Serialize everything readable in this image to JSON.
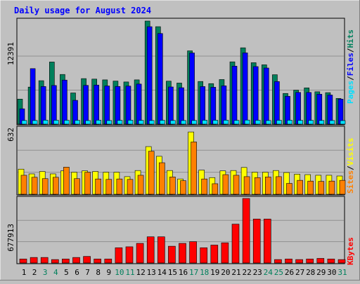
{
  "chart_data": [
    {
      "panel": "pages_files_hits",
      "type": "bar",
      "title": "Daily usage for August 2024",
      "ylabel_parts": [
        "Pages",
        "/",
        "Files",
        "/",
        "Hits"
      ],
      "max_label": "12391",
      "ylim": [
        0,
        12391
      ],
      "categories": [
        "1",
        "2",
        "3",
        "4",
        "5",
        "6",
        "7",
        "8",
        "9",
        "10",
        "11",
        "12",
        "13",
        "14",
        "15",
        "16",
        "17",
        "18",
        "19",
        "20",
        "21",
        "22",
        "23",
        "24",
        "25",
        "26",
        "27",
        "28",
        "29",
        "30",
        "31"
      ],
      "series": [
        {
          "name": "Hits",
          "values": [
            3006,
            4453,
            5220,
            7465,
            5970,
            3748,
            5470,
            5411,
            5319,
            5174,
            5068,
            5320,
            12391,
            11713,
            5165,
            4936,
            8809,
            5126,
            4868,
            5359,
            7487,
            9175,
            7384,
            7130,
            5939,
            3689,
            4085,
            4359,
            3891,
            3782,
            3089
          ]
        },
        {
          "name": "Files",
          "values": [
            1841,
            6675,
            4523,
            4643,
            5293,
            2861,
            4657,
            4697,
            4586,
            4531,
            4572,
            4817,
            11713,
            10893,
            4468,
            4376,
            8556,
            4517,
            4434,
            4601,
            6971,
            8562,
            6916,
            6744,
            5120,
            3350,
            3811,
            3804,
            3596,
            3497,
            3006
          ]
        },
        {
          "name": "Pages",
          "values": [
            436,
            436,
            473,
            467,
            464,
            458,
            429,
            473,
            431,
            451,
            470,
            453,
            436,
            459,
            438,
            432,
            438,
            468,
            466,
            472,
            453,
            487,
            463,
            436,
            461,
            467,
            452,
            452,
            440,
            433,
            424
          ]
        }
      ]
    },
    {
      "panel": "visits_sites",
      "type": "bar",
      "ylabel_parts": [
        "Sites",
        "/",
        "Visits"
      ],
      "max_label": "632",
      "ylim": [
        0,
        632
      ],
      "categories": [
        "1",
        "2",
        "3",
        "4",
        "5",
        "6",
        "7",
        "8",
        "9",
        "10",
        "11",
        "12",
        "13",
        "14",
        "15",
        "16",
        "17",
        "18",
        "19",
        "20",
        "21",
        "22",
        "23",
        "24",
        "25",
        "26",
        "27",
        "28",
        "29",
        "30",
        "31"
      ],
      "series": [
        {
          "name": "Visits",
          "values": [
            238,
            193,
            216,
            193,
            222,
            209,
            222,
            216,
            209,
            209,
            167,
            225,
            452,
            360,
            225,
            145,
            591,
            229,
            158,
            222,
            225,
            254,
            209,
            209,
            225,
            206,
            190,
            186,
            180,
            180,
            173
          ]
        },
        {
          "name": "Sites",
          "values": [
            180,
            161,
            148,
            161,
            257,
            148,
            209,
            145,
            141,
            145,
            141,
            180,
            408,
            299,
            164,
            129,
            496,
            145,
            100,
            186,
            180,
            167,
            158,
            164,
            167,
            103,
            132,
            125,
            122,
            125,
            132
          ]
        }
      ]
    },
    {
      "panel": "kbytes",
      "type": "bar",
      "ylabel_parts": [
        "KBytes"
      ],
      "max_label": "677913",
      "ylim": [
        0,
        677913
      ],
      "categories": [
        "1",
        "2",
        "3",
        "4",
        "5",
        "6",
        "7",
        "8",
        "9",
        "10",
        "11",
        "12",
        "13",
        "14",
        "15",
        "16",
        "17",
        "18",
        "19",
        "20",
        "21",
        "22",
        "23",
        "24",
        "25",
        "26",
        "27",
        "28",
        "29",
        "30",
        "31"
      ],
      "series": [
        {
          "name": "KBytes",
          "values": [
            42000,
            58000,
            58000,
            36000,
            42000,
            58000,
            69000,
            42000,
            42000,
            160000,
            170000,
            206000,
            275000,
            275000,
            176000,
            206000,
            224000,
            160000,
            188000,
            212000,
            408000,
            677913,
            462000,
            462000,
            36000,
            42000,
            36000,
            42000,
            48000,
            42000,
            36000
          ]
        }
      ]
    }
  ],
  "colors": {
    "hits": "#00805c",
    "files": "#0000ff",
    "pages": "#00e0ff",
    "visits": "#ffff00",
    "sites": "#ff8000",
    "kbytes": "#ff0000",
    "title": "#0000ff",
    "weekend_day": "#00805c",
    "weekday": "#000000",
    "background": "#c0c0c0"
  },
  "weekend_days": [
    "3",
    "4",
    "10",
    "11",
    "17",
    "18",
    "24",
    "25",
    "31"
  ]
}
